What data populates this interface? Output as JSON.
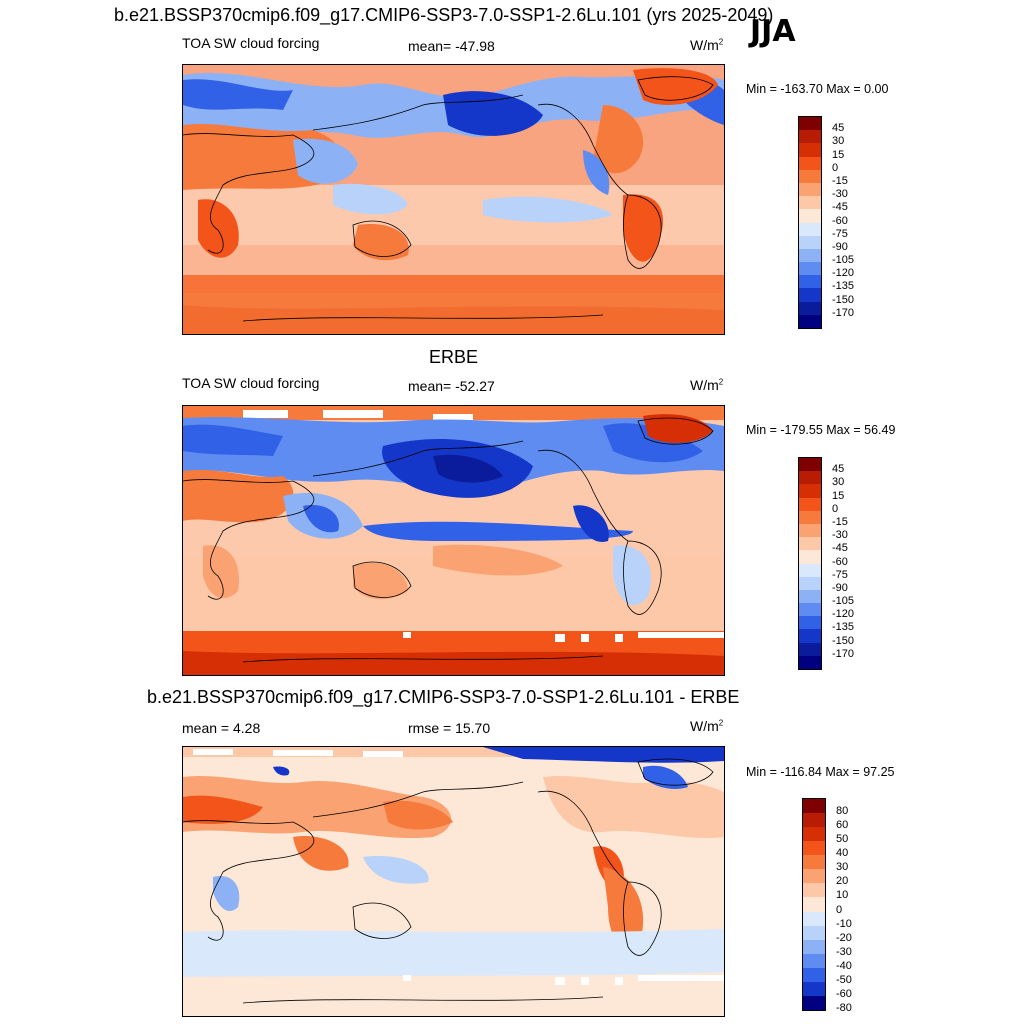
{
  "header": {
    "title": "b.e21.BSSP370cmip6.f09_g17.CMIP6-SSP3-7.0-SSP1-2.6Lu.101 (yrs 2025-2049)",
    "season": "JJA"
  },
  "panels": [
    {
      "id": "model",
      "title": "",
      "left_label": "TOA SW cloud forcing",
      "center_label": "mean= -47.98",
      "units": "W/m",
      "units_sup": "2",
      "minmax": "Min = -163.70 Max =   0.00",
      "colorbar": {
        "colors": [
          "#7f0000",
          "#b81c05",
          "#d62f06",
          "#f25419",
          "#f77a3d",
          "#fba272",
          "#fdc8a8",
          "#fde8d8",
          "#d9e8fb",
          "#b9d2f9",
          "#8cb2f5",
          "#5f8cf0",
          "#3161e6",
          "#1537c9",
          "#0a1c9c",
          "#000080"
        ],
        "labels": [
          "45",
          "30",
          "15",
          "0",
          "-15",
          "-30",
          "-45",
          "-60",
          "-75",
          "-90",
          "-105",
          "-120",
          "-135",
          "-150",
          "-170"
        ]
      }
    },
    {
      "id": "obs",
      "title": "ERBE",
      "left_label": "TOA SW cloud forcing",
      "center_label": "mean= -52.27",
      "units": "W/m",
      "units_sup": "2",
      "minmax": "Min = -179.55 Max =  56.49",
      "colorbar": {
        "colors": [
          "#7f0000",
          "#b81c05",
          "#d62f06",
          "#f25419",
          "#f77a3d",
          "#fba272",
          "#fdc8a8",
          "#fde8d8",
          "#d9e8fb",
          "#b9d2f9",
          "#8cb2f5",
          "#5f8cf0",
          "#3161e6",
          "#1537c9",
          "#0a1c9c",
          "#000080"
        ],
        "labels": [
          "45",
          "30",
          "15",
          "0",
          "-15",
          "-30",
          "-45",
          "-60",
          "-75",
          "-90",
          "-105",
          "-120",
          "-135",
          "-150",
          "-170"
        ]
      }
    },
    {
      "id": "diff",
      "title": "b.e21.BSSP370cmip6.f09_g17.CMIP6-SSP3-7.0-SSP1-2.6Lu.101 - ERBE",
      "left_label": "mean =   4.28",
      "center_label": "rmse =  15.70",
      "units": "W/m",
      "units_sup": "2",
      "minmax": "Min = -116.84 Max =  97.25",
      "colorbar": {
        "colors": [
          "#7f0000",
          "#b81c05",
          "#d62f06",
          "#f25419",
          "#f77a3d",
          "#fba272",
          "#fdc8a8",
          "#fde8d8",
          "#d9e8fb",
          "#b9d2f9",
          "#8cb2f5",
          "#5f8cf0",
          "#3161e6",
          "#1537c9",
          "#000080"
        ],
        "labels": [
          "80",
          "60",
          "50",
          "40",
          "30",
          "20",
          "10",
          "0",
          "-10",
          "-20",
          "-30",
          "-40",
          "-50",
          "-60",
          "-80"
        ]
      }
    }
  ]
}
